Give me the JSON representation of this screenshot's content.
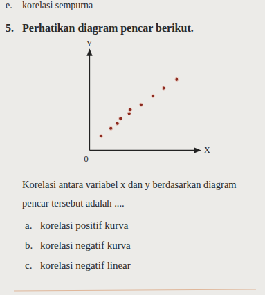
{
  "header": {
    "letter": "e.",
    "text": "korelasi sempurna"
  },
  "question": {
    "number": "5.",
    "text": "Perhatikan diagram pencar berikut."
  },
  "chart_data": {
    "type": "scatter",
    "x_label": "X",
    "y_label": "Y",
    "x": [
      1.1,
      2.0,
      2.6,
      2.9,
      3.7,
      3.8,
      4.8,
      5.9,
      6.9,
      8.1
    ],
    "values": [
      1.4,
      2.2,
      2.7,
      3.2,
      3.7,
      4.1,
      4.6,
      5.5,
      6.3,
      7.2
    ],
    "color": "#8b2a1f",
    "marker": "circle",
    "xlim": [
      0,
      10
    ],
    "ylim": [
      0,
      10
    ],
    "xticks": [
      0
    ],
    "tick_labels": "x",
    "grid": false
  },
  "prompt": [
    "Korelasi antara variabel x dan y berdasarkan diagram",
    "pencar tersebut adalah ...."
  ],
  "options": [
    {
      "letter": "a.",
      "text": "korelasi positif kurva"
    },
    {
      "letter": "b.",
      "text": "korelasi negatif kurva"
    },
    {
      "letter": "c.",
      "text": "korelasi negatif linear"
    }
  ]
}
